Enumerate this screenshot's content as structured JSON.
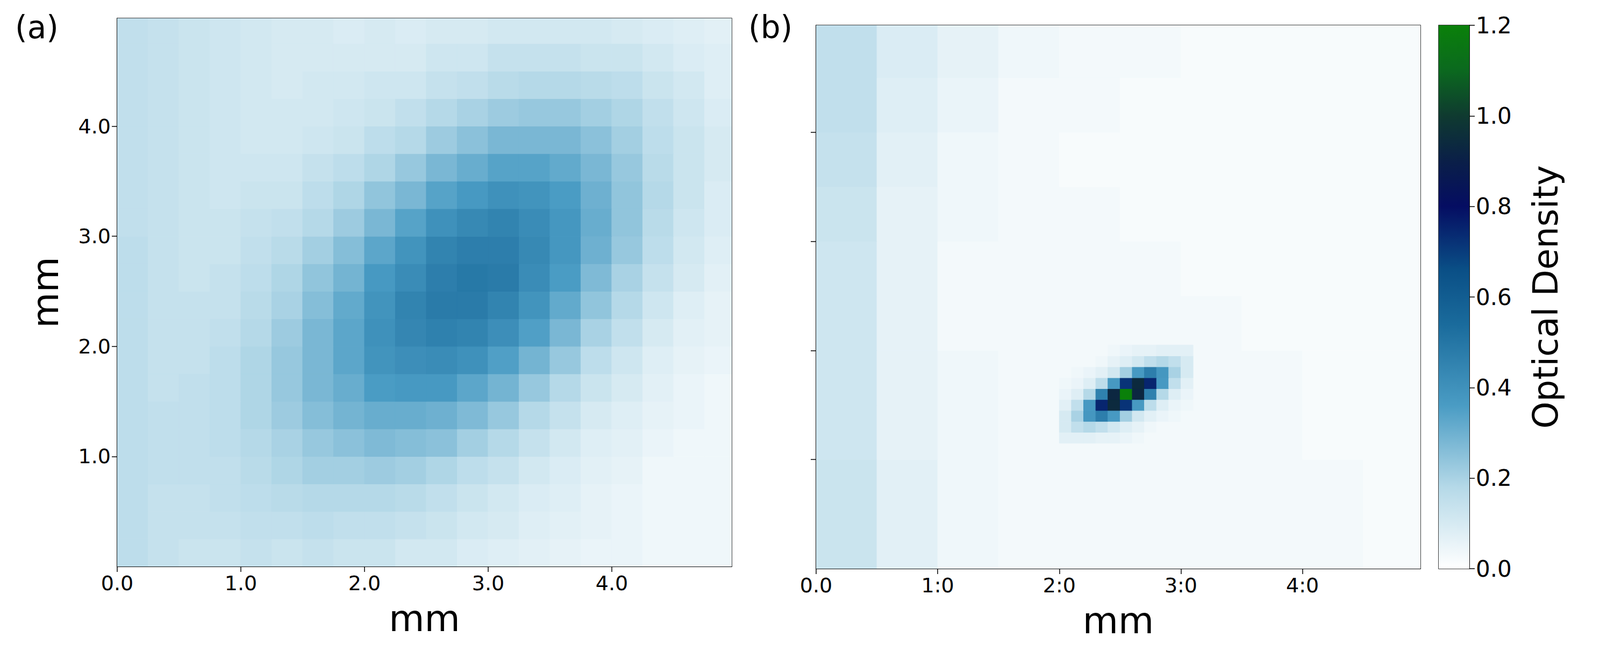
{
  "chart_data": [
    {
      "type": "heatmap",
      "label": "(a)",
      "x_label": "mm",
      "y_label": "mm",
      "grid": false,
      "xlim": [
        0,
        4.97
      ],
      "ylim": [
        0,
        4.98
      ],
      "xticks": [
        {
          "value": 0,
          "label": "0.0"
        },
        {
          "value": 1,
          "label": "1.0"
        },
        {
          "value": 2,
          "label": "2.0"
        },
        {
          "value": 3,
          "label": "3.0"
        },
        {
          "value": 4,
          "label": "4.0"
        }
      ],
      "yticks": [
        {
          "value": 1,
          "label": "1.0"
        },
        {
          "value": 2,
          "label": "2.0"
        },
        {
          "value": 3,
          "label": "3.0"
        },
        {
          "value": 4,
          "label": "4.0"
        }
      ],
      "cells": [
        {
          "x": [
            0.125,
            0.375,
            0.625,
            0.875,
            1.125,
            1.375,
            1.625,
            1.875,
            2.125,
            2.375,
            2.625,
            2.875,
            3.125,
            3.375,
            3.625,
            3.875,
            4.125,
            4.375,
            4.625,
            4.875
          ],
          "y": [
            0.125,
            0.375,
            0.625,
            0.875,
            1.125,
            1.375,
            1.625,
            1.875,
            2.125,
            2.375,
            2.625,
            2.875,
            3.125,
            3.375,
            3.625,
            3.875,
            4.125,
            4.375,
            4.625,
            4.875
          ],
          "values": [
            [
              0.16,
              0.14,
              0.13,
              0.13,
              0.14,
              0.13,
              0.14,
              0.13,
              0.13,
              0.11,
              0.11,
              0.09,
              0.08,
              0.07,
              0.06,
              0.05,
              0.05,
              0.04,
              0.04,
              0.04
            ],
            [
              0.16,
              0.14,
              0.14,
              0.14,
              0.15,
              0.15,
              0.16,
              0.15,
              0.15,
              0.14,
              0.13,
              0.11,
              0.1,
              0.08,
              0.07,
              0.06,
              0.05,
              0.04,
              0.04,
              0.04
            ],
            [
              0.16,
              0.14,
              0.14,
              0.15,
              0.16,
              0.17,
              0.18,
              0.18,
              0.18,
              0.17,
              0.15,
              0.13,
              0.11,
              0.09,
              0.08,
              0.06,
              0.05,
              0.04,
              0.04,
              0.04
            ],
            [
              0.16,
              0.15,
              0.15,
              0.15,
              0.17,
              0.19,
              0.21,
              0.21,
              0.22,
              0.21,
              0.19,
              0.16,
              0.14,
              0.11,
              0.09,
              0.07,
              0.06,
              0.04,
              0.04,
              0.04
            ],
            [
              0.16,
              0.15,
              0.15,
              0.16,
              0.18,
              0.2,
              0.23,
              0.25,
              0.27,
              0.26,
              0.25,
              0.21,
              0.18,
              0.14,
              0.11,
              0.08,
              0.07,
              0.05,
              0.04,
              0.04
            ],
            [
              0.16,
              0.15,
              0.15,
              0.16,
              0.19,
              0.22,
              0.26,
              0.29,
              0.31,
              0.31,
              0.3,
              0.27,
              0.23,
              0.18,
              0.14,
              0.1,
              0.08,
              0.06,
              0.05,
              0.04
            ],
            [
              0.16,
              0.14,
              0.15,
              0.16,
              0.19,
              0.23,
              0.28,
              0.31,
              0.36,
              0.37,
              0.37,
              0.33,
              0.29,
              0.23,
              0.18,
              0.13,
              0.1,
              0.07,
              0.05,
              0.04
            ],
            [
              0.16,
              0.14,
              0.14,
              0.16,
              0.19,
              0.23,
              0.28,
              0.33,
              0.39,
              0.41,
              0.42,
              0.4,
              0.35,
              0.29,
              0.23,
              0.16,
              0.12,
              0.08,
              0.06,
              0.05
            ],
            [
              0.16,
              0.14,
              0.14,
              0.15,
              0.18,
              0.22,
              0.28,
              0.33,
              0.4,
              0.44,
              0.46,
              0.45,
              0.41,
              0.35,
              0.28,
              0.2,
              0.15,
              0.1,
              0.07,
              0.06
            ],
            [
              0.16,
              0.14,
              0.14,
              0.14,
              0.17,
              0.2,
              0.26,
              0.32,
              0.39,
              0.45,
              0.48,
              0.48,
              0.45,
              0.39,
              0.32,
              0.24,
              0.18,
              0.12,
              0.08,
              0.06
            ],
            [
              0.16,
              0.14,
              0.13,
              0.14,
              0.16,
              0.19,
              0.24,
              0.29,
              0.37,
              0.42,
              0.47,
              0.49,
              0.48,
              0.42,
              0.36,
              0.27,
              0.2,
              0.14,
              0.1,
              0.07
            ],
            [
              0.16,
              0.14,
              0.13,
              0.13,
              0.15,
              0.17,
              0.21,
              0.26,
              0.33,
              0.39,
              0.45,
              0.47,
              0.47,
              0.43,
              0.38,
              0.3,
              0.23,
              0.16,
              0.11,
              0.08
            ],
            [
              0.15,
              0.14,
              0.13,
              0.13,
              0.14,
              0.15,
              0.18,
              0.22,
              0.28,
              0.34,
              0.4,
              0.43,
              0.45,
              0.42,
              0.38,
              0.31,
              0.24,
              0.17,
              0.12,
              0.09
            ],
            [
              0.15,
              0.14,
              0.13,
              0.12,
              0.13,
              0.13,
              0.16,
              0.19,
              0.24,
              0.28,
              0.34,
              0.37,
              0.4,
              0.39,
              0.36,
              0.3,
              0.24,
              0.18,
              0.13,
              0.09
            ],
            [
              0.15,
              0.14,
              0.13,
              0.12,
              0.12,
              0.12,
              0.14,
              0.16,
              0.19,
              0.23,
              0.28,
              0.31,
              0.34,
              0.34,
              0.32,
              0.28,
              0.23,
              0.17,
              0.13,
              0.1
            ],
            [
              0.15,
              0.14,
              0.13,
              0.12,
              0.11,
              0.11,
              0.12,
              0.13,
              0.16,
              0.18,
              0.22,
              0.25,
              0.28,
              0.28,
              0.28,
              0.25,
              0.21,
              0.16,
              0.13,
              0.1
            ],
            [
              0.15,
              0.14,
              0.13,
              0.12,
              0.11,
              0.11,
              0.11,
              0.12,
              0.13,
              0.15,
              0.18,
              0.2,
              0.22,
              0.23,
              0.23,
              0.21,
              0.19,
              0.15,
              0.12,
              0.09
            ],
            [
              0.15,
              0.14,
              0.13,
              0.12,
              0.11,
              0.1,
              0.11,
              0.11,
              0.12,
              0.12,
              0.14,
              0.15,
              0.17,
              0.18,
              0.18,
              0.17,
              0.16,
              0.13,
              0.11,
              0.08
            ],
            [
              0.15,
              0.14,
              0.13,
              0.12,
              0.11,
              0.1,
              0.1,
              0.1,
              0.1,
              0.1,
              0.12,
              0.12,
              0.14,
              0.14,
              0.14,
              0.13,
              0.13,
              0.11,
              0.09,
              0.08
            ],
            [
              0.15,
              0.14,
              0.13,
              0.12,
              0.11,
              0.1,
              0.1,
              0.09,
              0.1,
              0.09,
              0.1,
              0.1,
              0.11,
              0.11,
              0.11,
              0.11,
              0.1,
              0.09,
              0.08,
              0.07
            ]
          ]
        }
      ]
    },
    {
      "type": "heatmap",
      "label": "(b)",
      "x_label": "mm",
      "grid": false,
      "tick_labels": "x",
      "xlim": [
        0,
        4.97
      ],
      "ylim": [
        0,
        4.98
      ],
      "xticks": [
        {
          "value": 0,
          "label": "0.0"
        },
        {
          "value": 1,
          "label": "1:0"
        },
        {
          "value": 2,
          "label": "2:0"
        },
        {
          "value": 3,
          "label": "3:0"
        },
        {
          "value": 4,
          "label": "4:0"
        }
      ],
      "yticks": [
        1,
        2,
        3,
        4
      ],
      "cells": [
        {
          "x": [
            0.25,
            0.75,
            1.25,
            1.75,
            2.25,
            2.75,
            3.25,
            3.75,
            4.25,
            4.75
          ],
          "y": [
            0.25,
            0.75,
            1.25,
            1.75,
            2.25,
            2.75,
            3.25,
            3.75,
            4.25,
            4.75
          ],
          "values": [
            [
              0.13,
              0.07,
              0.04,
              0.03,
              0.03,
              0.03,
              0.03,
              0.03,
              0.03,
              0.02
            ],
            [
              0.13,
              0.07,
              0.04,
              0.03,
              0.03,
              0.03,
              0.03,
              0.03,
              0.03,
              0.02
            ],
            [
              0.12,
              0.06,
              0.04,
              0.03,
              0.03,
              0.03,
              0.03,
              0.03,
              0.02,
              0.02
            ],
            [
              0.12,
              0.06,
              0.04,
              0.03,
              0.03,
              0.04,
              0.03,
              0.03,
              0.02,
              0.02
            ],
            [
              0.12,
              0.06,
              0.03,
              0.03,
              0.03,
              0.03,
              0.03,
              0.02,
              0.02,
              0.02
            ],
            [
              0.12,
              0.06,
              0.03,
              0.03,
              0.03,
              0.03,
              0.02,
              0.02,
              0.02,
              0.02
            ],
            [
              0.13,
              0.06,
              0.04,
              0.03,
              0.03,
              0.02,
              0.02,
              0.02,
              0.02,
              0.02
            ],
            [
              0.14,
              0.07,
              0.04,
              0.03,
              0.02,
              0.02,
              0.02,
              0.02,
              0.02,
              0.02
            ],
            [
              0.15,
              0.08,
              0.05,
              0.03,
              0.03,
              0.02,
              0.02,
              0.02,
              0.02,
              0.02
            ],
            [
              0.15,
              0.09,
              0.06,
              0.04,
              0.03,
              0.03,
              0.02,
              0.02,
              0.02,
              0.02
            ]
          ]
        },
        {
          "x": [
            2.05,
            2.15,
            2.25,
            2.35,
            2.45,
            2.55,
            2.65,
            2.75,
            2.85,
            2.95,
            3.05
          ],
          "y": [
            1.2,
            1.3,
            1.4,
            1.5,
            1.6,
            1.7,
            1.8,
            1.9,
            2.0
          ],
          "values": [
            [
              0.07,
              0.07,
              0.07,
              0.06,
              0.06,
              0.05,
              0.04,
              0.03,
              0.03,
              0.03,
              0.03
            ],
            [
              0.1,
              0.15,
              0.18,
              0.15,
              0.11,
              0.08,
              0.06,
              0.04,
              0.03,
              0.03,
              0.03
            ],
            [
              0.1,
              0.2,
              0.38,
              0.47,
              0.37,
              0.21,
              0.11,
              0.07,
              0.05,
              0.04,
              0.03
            ],
            [
              0.07,
              0.15,
              0.37,
              0.75,
              0.94,
              0.72,
              0.37,
              0.16,
              0.08,
              0.05,
              0.04
            ],
            [
              0.05,
              0.08,
              0.18,
              0.46,
              0.93,
              1.2,
              0.93,
              0.46,
              0.18,
              0.08,
              0.05
            ],
            [
              0.04,
              0.05,
              0.08,
              0.16,
              0.37,
              0.72,
              0.94,
              0.75,
              0.37,
              0.15,
              0.07
            ],
            [
              0.03,
              0.04,
              0.05,
              0.07,
              0.11,
              0.21,
              0.37,
              0.47,
              0.38,
              0.2,
              0.1
            ],
            [
              0.03,
              0.03,
              0.03,
              0.04,
              0.06,
              0.08,
              0.11,
              0.15,
              0.18,
              0.15,
              0.1
            ],
            [
              0.03,
              0.03,
              0.03,
              0.03,
              0.04,
              0.05,
              0.06,
              0.06,
              0.07,
              0.07,
              0.07
            ]
          ]
        }
      ],
      "colorbar": {
        "label": "Optical Density",
        "range": [
          0,
          1.2
        ],
        "ticks": [
          {
            "value": 0,
            "label": "0.0"
          },
          {
            "value": 0.2,
            "label": "0.2"
          },
          {
            "value": 0.4,
            "label": "0.4"
          },
          {
            "value": 0.6,
            "label": "0.6"
          },
          {
            "value": 0.8,
            "label": "0.8"
          },
          {
            "value": 1.0,
            "label": "1.0"
          },
          {
            "value": 1.2,
            "label": "1.2"
          }
        ]
      }
    }
  ]
}
